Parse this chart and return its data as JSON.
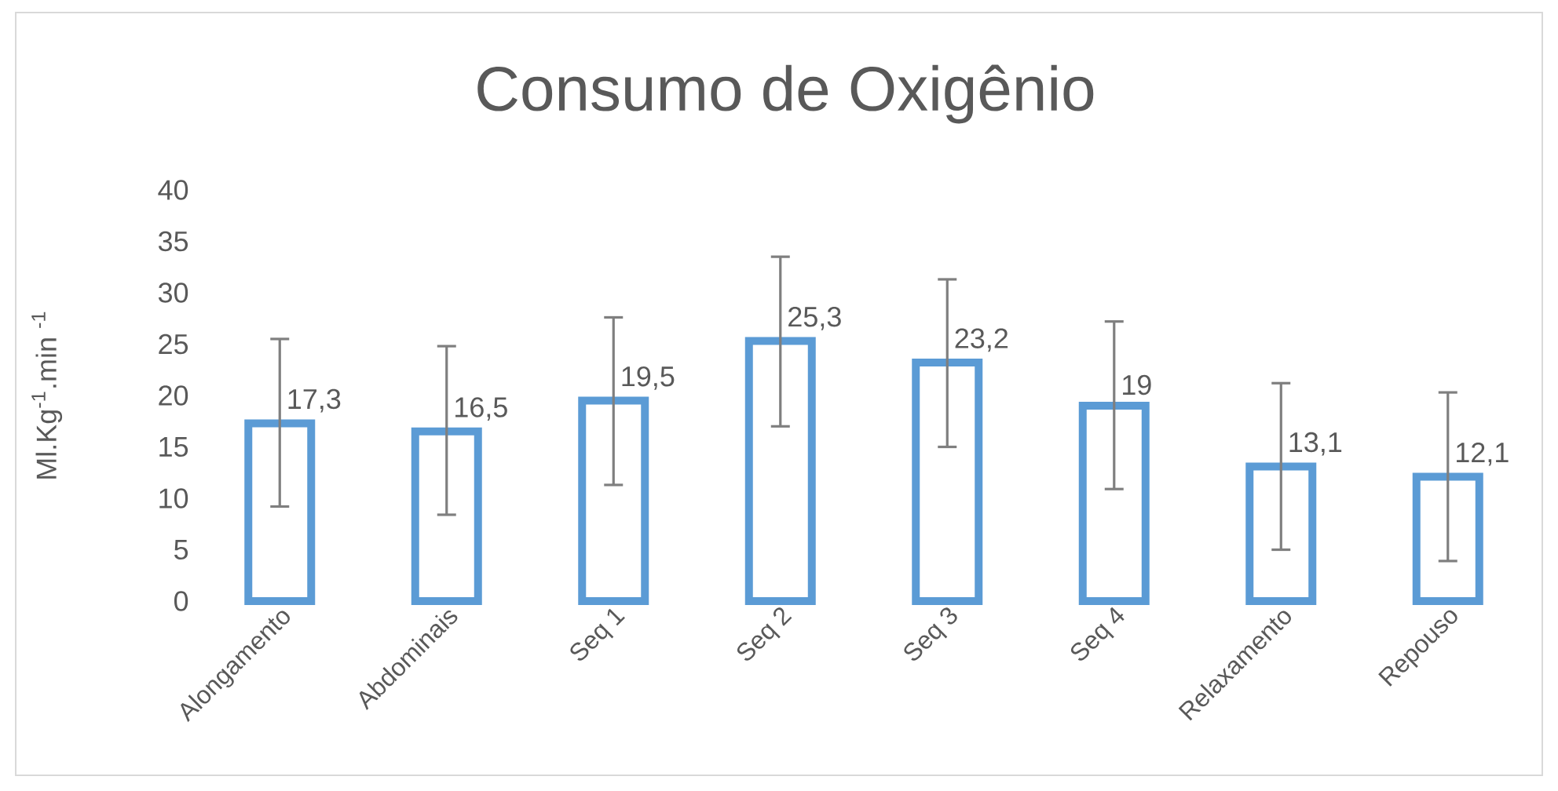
{
  "chart_data": {
    "type": "bar",
    "title": "Consumo de Oxigênio",
    "ylabel": "Ml.Kg$^{-1}$.min $^{-1}$",
    "categories": [
      "Alongamento",
      "Abdominais",
      "Seq 1",
      "Seq 2",
      "Seq 3",
      "Seq 4",
      "Relaxamento",
      "Repouso"
    ],
    "values": [
      17.3,
      16.5,
      19.5,
      25.3,
      23.2,
      19,
      13.1,
      12.1
    ],
    "value_labels": [
      "17,3",
      "16,5",
      "19,5",
      "25,3",
      "23,2",
      "19",
      "13,1",
      "12,1"
    ],
    "errors": [
      [
        9.2,
        25.5
      ],
      [
        8.4,
        24.8
      ],
      [
        11.3,
        27.6
      ],
      [
        17.0,
        33.5
      ],
      [
        15.0,
        31.3
      ],
      [
        10.9,
        27.2
      ],
      [
        5.0,
        21.2
      ],
      [
        3.9,
        20.3
      ]
    ],
    "color": "#5b9bd5",
    "ylim": [
      0,
      40
    ],
    "yticks": [
      0,
      5,
      10,
      15,
      20,
      25,
      30,
      35,
      40
    ]
  }
}
